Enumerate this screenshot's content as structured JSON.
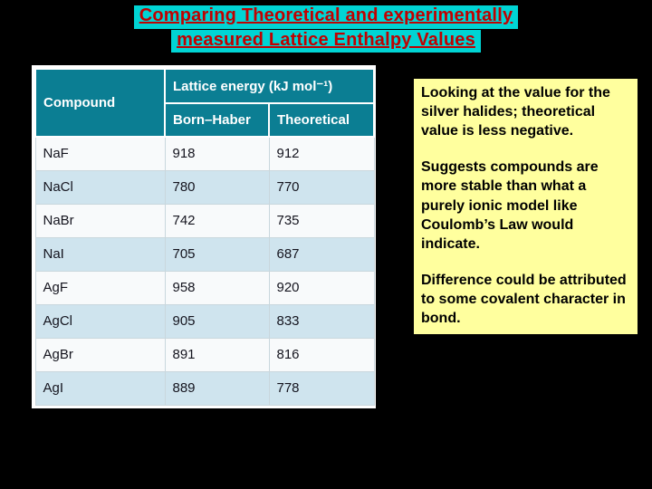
{
  "slide": {
    "title_line1": "Comparing Theoretical and experimentally",
    "title_line2": "measured Lattice Enthalpy Values"
  },
  "table": {
    "header": {
      "compound": "Compound",
      "lattice_energy": "Lattice energy (kJ mol⁻¹)",
      "born_haber": "Born–Haber",
      "theoretical": "Theoretical"
    },
    "rows": [
      {
        "compound": "NaF",
        "born_haber": "918",
        "theoretical": "912"
      },
      {
        "compound": "NaCl",
        "born_haber": "780",
        "theoretical": "770"
      },
      {
        "compound": "NaBr",
        "born_haber": "742",
        "theoretical": "735"
      },
      {
        "compound": "NaI",
        "born_haber": "705",
        "theoretical": "687"
      },
      {
        "compound": "AgF",
        "born_haber": "958",
        "theoretical": "920"
      },
      {
        "compound": "AgCl",
        "born_haber": "905",
        "theoretical": "833"
      },
      {
        "compound": "AgBr",
        "born_haber": "891",
        "theoretical": "816"
      },
      {
        "compound": "AgI",
        "born_haber": "889",
        "theoretical": "778"
      }
    ]
  },
  "note_box": {
    "paragraph1": "Looking at the value for the silver halides; theoretical value is less negative.",
    "paragraph2": "Suggests compounds are more stable than what a purely ionic model like Coulomb’s Law would indicate.",
    "paragraph3": "Difference could be attributed to some covalent character in bond."
  },
  "colors": {
    "slide_background": "#000000",
    "title_text": "#c00000",
    "title_highlight": "#00d4d4",
    "table_header_background": "#0b7e93",
    "table_alt_row": "#cfe4ee",
    "note_box_background": "#ffff9e"
  }
}
